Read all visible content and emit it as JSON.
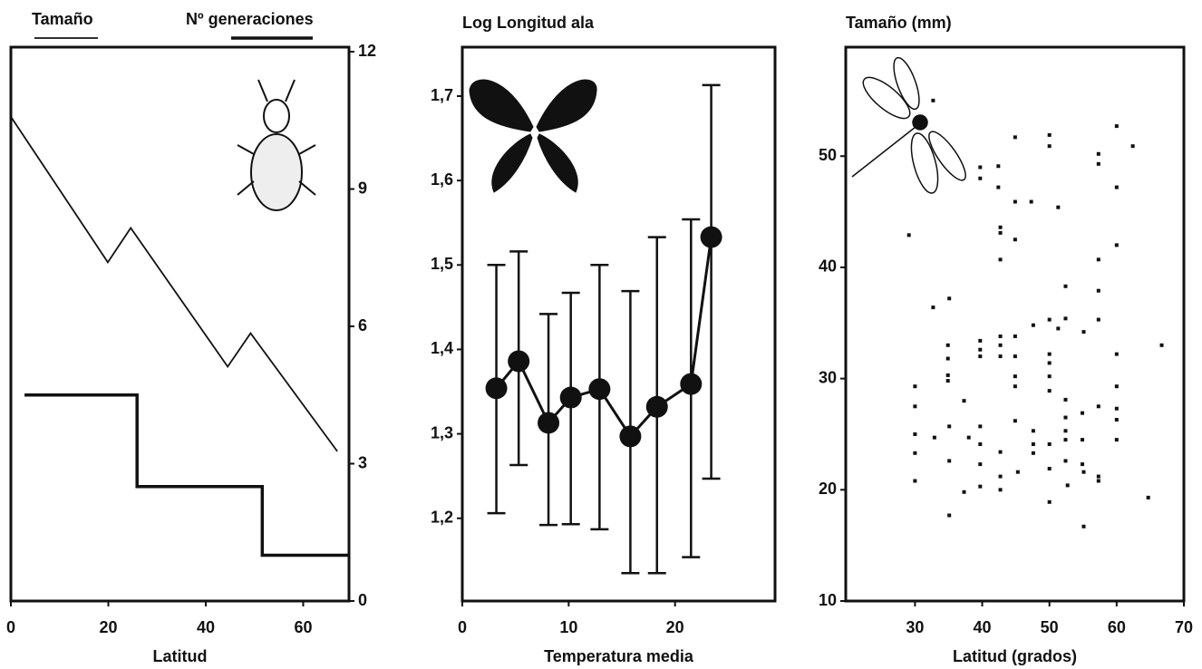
{
  "chart_data": [
    {
      "type": "line",
      "xlabel": "Latitud",
      "xlim": [
        0,
        69.4
      ],
      "xticks": [
        0,
        20,
        40,
        60
      ],
      "y2lim": [
        0,
        12.1
      ],
      "y2ticks": [
        0,
        3,
        6,
        9,
        12
      ],
      "series": [
        {
          "name": "Tamaño",
          "color": "#111111",
          "axis": "y2",
          "x": [
            0,
            19.9,
            24.6,
            44.5,
            49.2,
            67
          ],
          "values": [
            10.58,
            7.4,
            8.15,
            5.12,
            5.85,
            3.27
          ]
        },
        {
          "name": "Nº generaciones",
          "color": "#111111",
          "axis": "y2",
          "x": [
            2.8,
            25.9,
            25.9,
            51.6,
            51.6,
            69.4
          ],
          "values": [
            4.5,
            4.5,
            2.5,
            2.5,
            1.0,
            1.0
          ]
        }
      ]
    },
    {
      "type": "errorbar",
      "title": "Log Longitud ala",
      "xlabel": "Temperatura media",
      "xlim": [
        0,
        29.4
      ],
      "xticks": [
        0,
        10,
        20
      ],
      "ylim": [
        1.102,
        1.758
      ],
      "yticks": [
        {
          "value": 1.2,
          "label": "1,2"
        },
        {
          "value": 1.3,
          "label": "1,3"
        },
        {
          "value": 1.4,
          "label": "1,4"
        },
        {
          "value": 1.5,
          "label": "1,5"
        },
        {
          "value": 1.6,
          "label": "1,6"
        },
        {
          "value": 1.7,
          "label": "1,7"
        }
      ],
      "color": "#111111",
      "x": [
        3.2,
        5.3,
        8.1,
        10.2,
        12.9,
        15.8,
        18.3,
        21.5,
        23.4
      ],
      "values": [
        1.354,
        1.386,
        1.313,
        1.343,
        1.353,
        1.297,
        1.332,
        1.359,
        1.533
      ],
      "upper": [
        1.5,
        1.516,
        1.442,
        1.467,
        1.5,
        1.469,
        1.533,
        1.554,
        1.713
      ],
      "lower": [
        1.206,
        1.263,
        1.192,
        1.193,
        1.187,
        1.135,
        1.135,
        1.154,
        1.247
      ]
    },
    {
      "type": "scatter",
      "title": "Tamaño (mm)",
      "xlabel": "Latitud (grados)",
      "xlim": [
        19.7,
        70
      ],
      "xticks": [
        30,
        40,
        50,
        60,
        70
      ],
      "ylim": [
        10,
        59.8
      ],
      "yticks": [
        10,
        20,
        30,
        40,
        50
      ],
      "color": "#111111",
      "x": [
        32.7,
        29.1,
        32.7,
        30,
        30,
        30,
        30,
        30,
        32.9,
        34.9,
        34.9,
        34.9,
        34.9,
        35.1,
        35.1,
        35.1,
        35.1,
        37.3,
        37.3,
        38,
        39.7,
        39.7,
        39.7,
        39.7,
        39.7,
        39.7,
        39.7,
        39.7,
        39.7,
        42.4,
        42.4,
        42.7,
        42.7,
        42.7,
        42.7,
        42.7,
        42.7,
        42.7,
        42.7,
        42.7,
        44.9,
        44.9,
        44.9,
        44.9,
        44.9,
        44.9,
        44.9,
        44.9,
        45.3,
        47.3,
        47.6,
        47.6,
        47.6,
        47.6,
        50,
        50,
        50,
        50,
        50,
        50,
        50,
        50,
        50,
        50,
        51.3,
        51.3,
        52.4,
        52.4,
        52.4,
        52.4,
        52.4,
        52.4,
        52.4,
        52.7,
        54.9,
        54.9,
        54.9,
        55.1,
        57.3,
        57.3,
        57.3,
        57.3,
        57.3,
        57.3,
        57.3,
        57.3,
        60,
        60,
        60,
        60,
        60,
        60,
        60,
        60,
        62.4,
        66.7,
        64.7,
        55.1,
        55.1
      ],
      "values": [
        55.0,
        42.9,
        36.4,
        29.3,
        27.5,
        25.0,
        23.3,
        20.8,
        24.7,
        31.8,
        33.0,
        30.3,
        29.8,
        37.2,
        25.7,
        22.6,
        17.7,
        28.0,
        19.8,
        24.7,
        49.0,
        48.0,
        33.4,
        32.6,
        32.0,
        25.7,
        24.1,
        22.3,
        20.3,
        47.2,
        49.1,
        43.6,
        43.1,
        40.7,
        33.8,
        33.0,
        32.0,
        23.4,
        21.2,
        20.0,
        51.7,
        45.9,
        42.5,
        33.8,
        32.0,
        30.2,
        29.3,
        26.2,
        21.6,
        45.9,
        34.8,
        25.3,
        24.1,
        23.3,
        51.9,
        50.9,
        35.3,
        32.2,
        31.4,
        30.2,
        28.9,
        24.1,
        21.9,
        18.9,
        45.4,
        34.5,
        38.3,
        35.4,
        28.1,
        26.5,
        25.3,
        24.5,
        22.6,
        20.4,
        26.9,
        24.5,
        22.3,
        16.7,
        50.2,
        49.3,
        40.7,
        37.9,
        35.3,
        27.5,
        21.2,
        20.8,
        52.7,
        47.2,
        42.0,
        32.2,
        29.3,
        27.3,
        26.3,
        24.5,
        50.9,
        33.0,
        19.3,
        34.2,
        21.6
      ]
    }
  ]
}
